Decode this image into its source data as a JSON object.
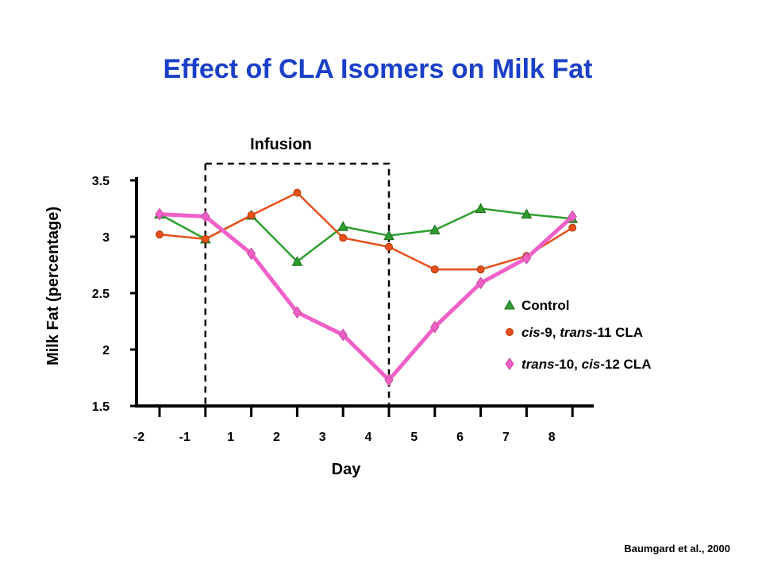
{
  "chart_data": {
    "type": "line",
    "title": "Effect of CLA Isomers on Milk Fat",
    "xlabel": "Day",
    "ylabel": "Milk Fat (percentage)",
    "ylim": [
      1.5,
      3.5
    ],
    "yticks": [
      "1.5",
      "2",
      "2.5",
      "3",
      "3.5"
    ],
    "categories": [
      "-2",
      "-1",
      "1",
      "2",
      "3",
      "4",
      "5",
      "6",
      "7",
      "8"
    ],
    "annotation": "Infusion",
    "infusion_range": [
      "-1",
      "4"
    ],
    "grid": false,
    "legend_position": "right",
    "series": [
      {
        "name": "Control",
        "color": "#2e9e2e",
        "marker": "triangle",
        "values": [
          3.2,
          2.98,
          3.19,
          2.78,
          3.09,
          3.01,
          3.06,
          3.25,
          3.2,
          3.16
        ]
      },
      {
        "name": "cis-9, trans-11 CLA",
        "name_parts": [
          [
            "cis",
            true
          ],
          [
            "-9, ",
            false
          ],
          [
            "trans",
            true
          ],
          [
            "-11 CLA",
            false
          ]
        ],
        "color": "#e8501a",
        "marker": "circle",
        "values": [
          3.02,
          2.98,
          3.19,
          3.39,
          2.99,
          2.91,
          2.71,
          2.71,
          2.83,
          3.08
        ]
      },
      {
        "name": "trans-10, cis-12 CLA",
        "name_parts": [
          [
            "trans",
            true
          ],
          [
            "-10, ",
            false
          ],
          [
            "cis",
            true
          ],
          [
            "-12 CLA",
            false
          ]
        ],
        "color": "#f060c8",
        "marker": "diamond",
        "values": [
          3.2,
          3.18,
          2.85,
          2.33,
          2.13,
          1.73,
          2.2,
          2.59,
          2.81,
          3.18
        ]
      }
    ]
  },
  "citation": "Baumgard et al., 2000"
}
